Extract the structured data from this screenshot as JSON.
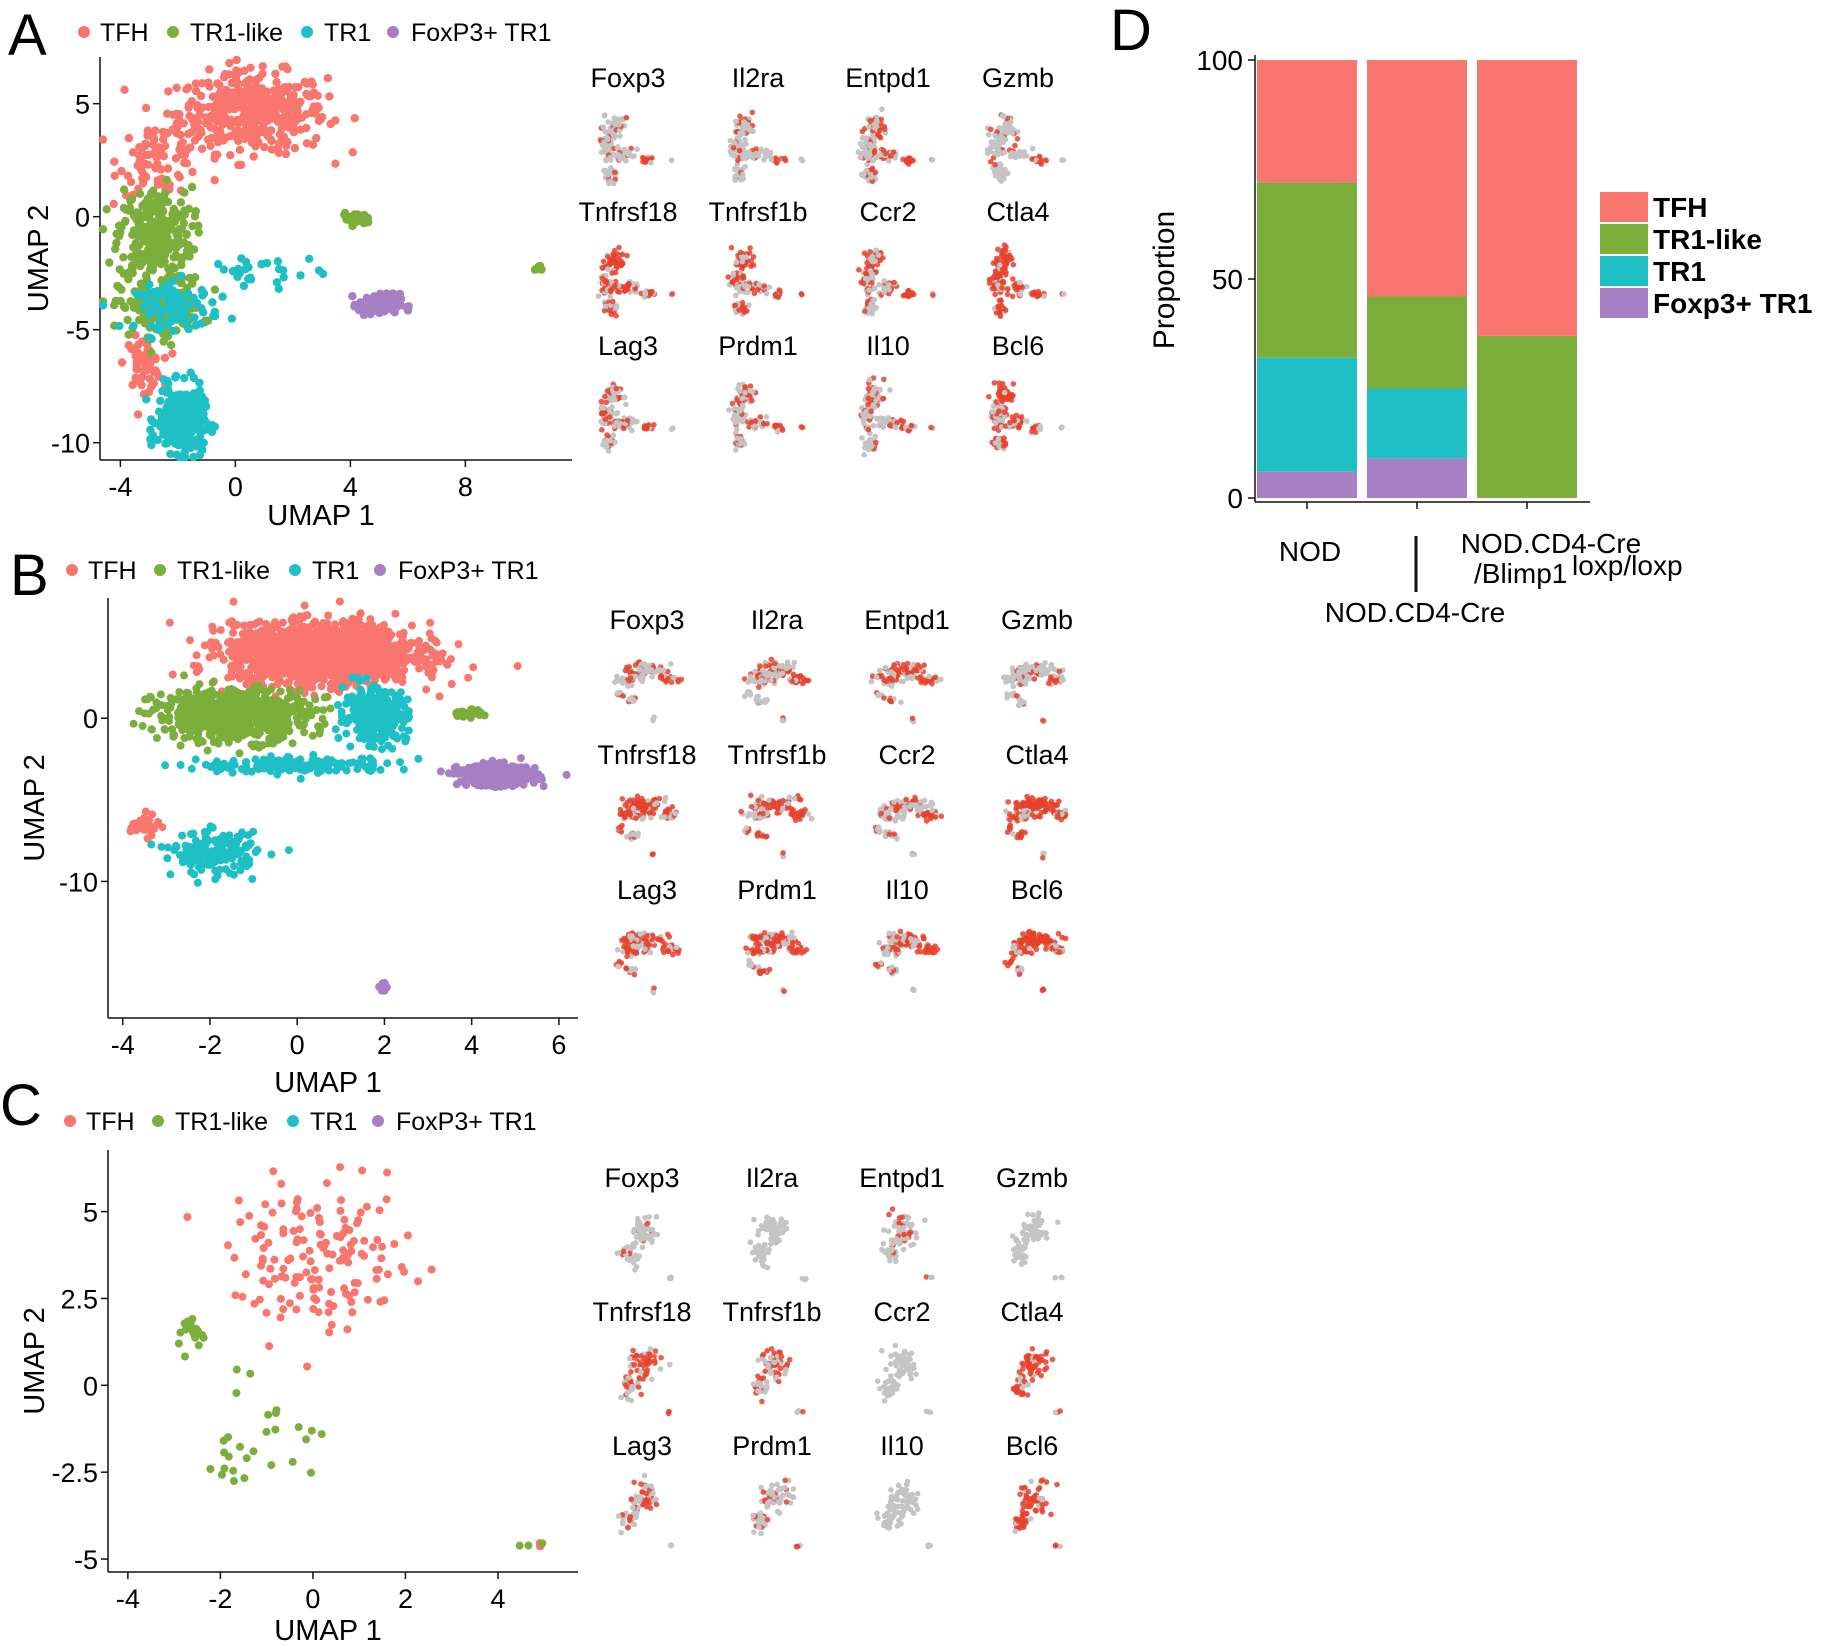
{
  "colors": {
    "TFH": "#f8766d",
    "TR1-like": "#7cae3c",
    "TR1": "#1ec0c6",
    "FoxP3+ TR1": "#a67fc4",
    "gray": "#c4c4c4",
    "red": "#e8412c"
  },
  "panels": {
    "A": {
      "letter": "A",
      "legend": [
        "TFH",
        "TR1-like",
        "TR1",
        "FoxP3+ TR1"
      ],
      "genes": [
        "Foxp3",
        "Il2ra",
        "Entpd1",
        "Gzmb",
        "Tnfrsf18",
        "Tnfrsf1b",
        "Ccr2",
        "Ctla4",
        "Lag3",
        "Prdm1",
        "Il10",
        "Bcl6"
      ]
    },
    "B": {
      "letter": "B",
      "legend": [
        "TFH",
        "TR1-like",
        "TR1",
        "FoxP3+ TR1"
      ],
      "genes": [
        "Foxp3",
        "Il2ra",
        "Entpd1",
        "Gzmb",
        "Tnfrsf18",
        "Tnfrsf1b",
        "Ccr2",
        "Ctla4",
        "Lag3",
        "Prdm1",
        "Il10",
        "Bcl6"
      ]
    },
    "C": {
      "letter": "C",
      "legend": [
        "TFH",
        "TR1-like",
        "TR1",
        "FoxP3+ TR1"
      ],
      "genes": [
        "Foxp3",
        "Il2ra",
        "Entpd1",
        "Gzmb",
        "Tnfrsf18",
        "Tnfrsf1b",
        "Ccr2",
        "Ctla4",
        "Lag3",
        "Prdm1",
        "Il10",
        "Bcl6"
      ]
    },
    "D": {
      "letter": "D"
    }
  },
  "chart_data": [
    {
      "id": "A",
      "type": "scatter",
      "xlabel": "UMAP 1",
      "ylabel": "UMAP 2",
      "xlim": [
        -4.5,
        11.5
      ],
      "ylim": [
        -10.5,
        6.8
      ],
      "xticks": [
        -4,
        0,
        4,
        8
      ],
      "yticks": [
        5,
        0,
        -5,
        -10
      ],
      "xtick_labels": [
        "-4",
        "0",
        "4",
        "8"
      ],
      "ytick_labels": [
        "5",
        "0",
        "-5",
        "-10"
      ],
      "clusters": [
        {
          "group": "TFH",
          "n": 420,
          "cx": 0.6,
          "cy": 4.6,
          "sx": 1.6,
          "sy": 1.1
        },
        {
          "group": "TFH",
          "n": 90,
          "cx": -2.6,
          "cy": 2.6,
          "sx": 0.9,
          "sy": 1.0
        },
        {
          "group": "TFH",
          "n": 60,
          "cx": -3.2,
          "cy": -6.5,
          "sx": 0.4,
          "sy": 0.7
        },
        {
          "group": "TR1-like",
          "n": 260,
          "cx": -2.8,
          "cy": -0.8,
          "sx": 0.8,
          "sy": 1.3
        },
        {
          "group": "TR1-like",
          "n": 180,
          "cx": -2.6,
          "cy": -4.0,
          "sx": 0.9,
          "sy": 0.8
        },
        {
          "group": "TR1-like",
          "n": 25,
          "cx": 4.2,
          "cy": -0.1,
          "sx": 0.3,
          "sy": 0.15
        },
        {
          "group": "TR1-like",
          "n": 8,
          "cx": 10.6,
          "cy": -2.3,
          "sx": 0.1,
          "sy": 0.1
        },
        {
          "group": "TR1",
          "n": 90,
          "cx": -2.0,
          "cy": -4.0,
          "sx": 0.9,
          "sy": 0.6
        },
        {
          "group": "TR1",
          "n": 30,
          "cx": 0.8,
          "cy": -2.5,
          "sx": 1.4,
          "sy": 0.6
        },
        {
          "group": "TR1",
          "n": 320,
          "cx": -1.9,
          "cy": -9.0,
          "sx": 0.5,
          "sy": 0.9
        },
        {
          "group": "FoxP3+ TR1",
          "n": 110,
          "cx": 5.0,
          "cy": -3.9,
          "sx": 0.45,
          "sy": 0.3
        }
      ]
    },
    {
      "id": "B",
      "type": "scatter",
      "xlabel": "UMAP 1",
      "ylabel": "UMAP 2",
      "xlim": [
        -4.2,
        6.3
      ],
      "ylim": [
        -18,
        7
      ],
      "xticks": [
        -4,
        -2,
        0,
        2,
        4,
        6
      ],
      "yticks": [
        0,
        -10
      ],
      "xtick_labels": [
        "-4",
        "-2",
        "0",
        "2",
        "4",
        "6"
      ],
      "ytick_labels": [
        "0",
        "-10"
      ],
      "clusters": [
        {
          "group": "TFH",
          "n": 1800,
          "cx": 0.6,
          "cy": 4.0,
          "sx": 1.3,
          "sy": 1.1
        },
        {
          "group": "TFH",
          "n": 40,
          "cx": -3.5,
          "cy": -6.6,
          "sx": 0.2,
          "sy": 0.4
        },
        {
          "group": "TR1-like",
          "n": 650,
          "cx": -1.5,
          "cy": 0.2,
          "sx": 1.1,
          "sy": 1.0
        },
        {
          "group": "TR1-like",
          "n": 30,
          "cx": 3.9,
          "cy": 0.3,
          "sx": 0.25,
          "sy": 0.15
        },
        {
          "group": "TR1",
          "n": 300,
          "cx": 1.8,
          "cy": 0.2,
          "sx": 0.45,
          "sy": 1.0
        },
        {
          "group": "TR1",
          "n": 160,
          "cx": 0.0,
          "cy": -2.9,
          "sx": 1.4,
          "sy": 0.3
        },
        {
          "group": "TR1",
          "n": 170,
          "cx": -1.9,
          "cy": -8.3,
          "sx": 0.6,
          "sy": 0.8
        },
        {
          "group": "FoxP3+ TR1",
          "n": 320,
          "cx": 4.6,
          "cy": -3.5,
          "sx": 0.55,
          "sy": 0.4
        },
        {
          "group": "FoxP3+ TR1",
          "n": 15,
          "cx": 2.0,
          "cy": -16.5,
          "sx": 0.05,
          "sy": 0.2
        }
      ]
    },
    {
      "id": "C",
      "type": "scatter",
      "xlabel": "UMAP 1",
      "ylabel": "UMAP 2",
      "xlim": [
        -4.3,
        5.6
      ],
      "ylim": [
        -5.2,
        6.6
      ],
      "xticks": [
        -4,
        -2,
        0,
        2,
        4
      ],
      "yticks": [
        5,
        2.5,
        0,
        -2.5,
        -5
      ],
      "xtick_labels": [
        "-4",
        "-2",
        "0",
        "2",
        "4"
      ],
      "ytick_labels": [
        "5",
        "2.5",
        "0",
        "-2.5",
        "-5"
      ],
      "clusters": [
        {
          "group": "TFH",
          "n": 150,
          "cx": 0.2,
          "cy": 3.6,
          "sx": 1.2,
          "sy": 1.3
        },
        {
          "group": "TFH",
          "n": 3,
          "cx": 4.9,
          "cy": -4.6,
          "sx": 0.05,
          "sy": 0.05
        },
        {
          "group": "TR1-like",
          "n": 22,
          "cx": -2.6,
          "cy": 1.5,
          "sx": 0.25,
          "sy": 0.35
        },
        {
          "group": "TR1-like",
          "n": 28,
          "cx": -1.3,
          "cy": -1.4,
          "sx": 0.9,
          "sy": 0.9
        },
        {
          "group": "TR1-like",
          "n": 3,
          "cx": 4.7,
          "cy": -4.6,
          "sx": 0.5,
          "sy": 0.05
        }
      ]
    },
    {
      "id": "D",
      "type": "bar",
      "stacked": true,
      "ylabel": "Proportion",
      "ylim": [
        0,
        100
      ],
      "yticks": [
        0,
        50,
        100
      ],
      "ytick_labels": [
        "0",
        "50",
        "100"
      ],
      "categories": [
        "NOD",
        "NOD.CD4-Cre",
        "NOD.CD4-Cre/Blimp1loxp/loxp"
      ],
      "category_labels": {
        "nod": "NOD",
        "cd4cre": "NOD.CD4-Cre",
        "blimp_line1": "NOD.CD4-Cre",
        "blimp_line2": "/Blimp1",
        "blimp_sup": "loxp/loxp"
      },
      "series": [
        {
          "name": "Foxp3+ TR1",
          "values": [
            6,
            9,
            0
          ]
        },
        {
          "name": "TR1",
          "values": [
            26,
            16,
            0
          ]
        },
        {
          "name": "TR1-like",
          "values": [
            40,
            21,
            37
          ]
        },
        {
          "name": "TFH",
          "values": [
            28,
            54,
            63
          ]
        }
      ],
      "legend": [
        "TFH",
        "TR1-like",
        "TR1",
        "Foxp3+ TR1"
      ]
    }
  ]
}
